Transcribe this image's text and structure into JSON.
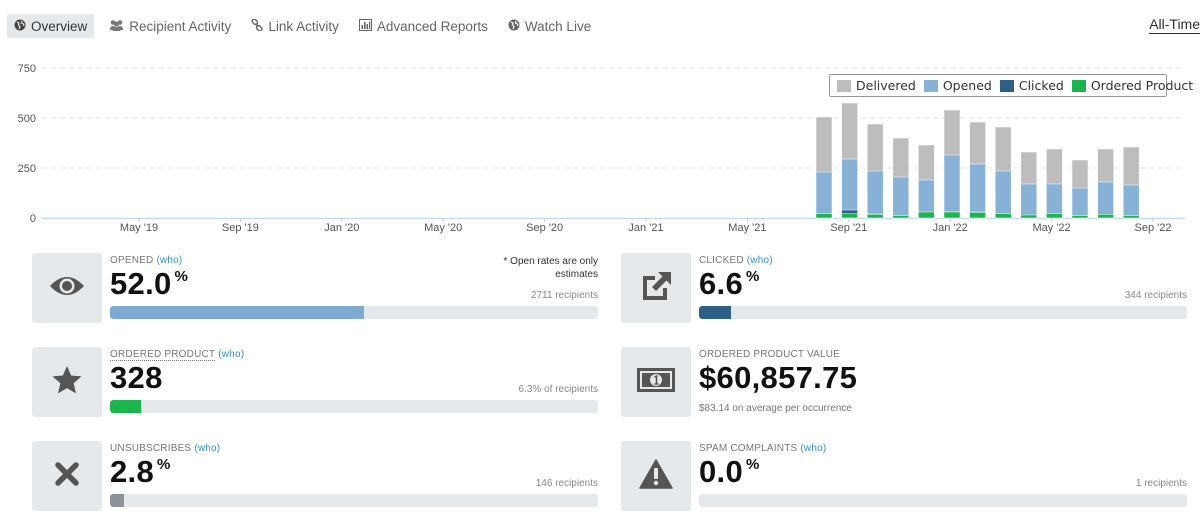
{
  "tabs": [
    {
      "label": "Overview",
      "icon": "globe-icon",
      "active": true
    },
    {
      "label": "Recipient Activity",
      "icon": "users-icon",
      "active": false
    },
    {
      "label": "Link Activity",
      "icon": "link-icon",
      "active": false
    },
    {
      "label": "Advanced Reports",
      "icon": "bar-chart-icon",
      "active": false
    },
    {
      "label": "Watch Live",
      "icon": "globe-icon",
      "active": false
    }
  ],
  "range_selector": "All-Time",
  "chart_data": {
    "type": "bar",
    "stacked": true,
    "ylim": [
      0,
      750
    ],
    "y_ticks": [
      0,
      250,
      500,
      750
    ],
    "x_tick_labels": [
      "May '19",
      "Sep '19",
      "Jan '20",
      "May '20",
      "Sep '20",
      "Jan '21",
      "May '21",
      "Sep '21",
      "Jan '22",
      "May '22",
      "Sep '22"
    ],
    "legend_position": "top-right",
    "grid": true,
    "series": [
      {
        "name": "Delivered",
        "color": "#bdbdbd"
      },
      {
        "name": "Opened",
        "color": "#87b2d6"
      },
      {
        "name": "Clicked",
        "color": "#2e5f86"
      },
      {
        "name": "Ordered Product",
        "color": "#1db34f"
      }
    ],
    "bars": [
      {
        "delivered": 505,
        "opened": 230,
        "clicked": 10,
        "ordered": 22
      },
      {
        "delivered": 575,
        "opened": 295,
        "clicked": 40,
        "ordered": 22
      },
      {
        "delivered": 470,
        "opened": 235,
        "clicked": 20,
        "ordered": 18
      },
      {
        "delivered": 400,
        "opened": 205,
        "clicked": 8,
        "ordered": 12
      },
      {
        "delivered": 365,
        "opened": 190,
        "clicked": 12,
        "ordered": 30
      },
      {
        "delivered": 540,
        "opened": 315,
        "clicked": 30,
        "ordered": 30
      },
      {
        "delivered": 480,
        "opened": 270,
        "clicked": 30,
        "ordered": 28
      },
      {
        "delivered": 455,
        "opened": 235,
        "clicked": 15,
        "ordered": 22
      },
      {
        "delivered": 330,
        "opened": 170,
        "clicked": 10,
        "ordered": 15
      },
      {
        "delivered": 345,
        "opened": 170,
        "clicked": 15,
        "ordered": 22
      },
      {
        "delivered": 290,
        "opened": 150,
        "clicked": 8,
        "ordered": 12
      },
      {
        "delivered": 345,
        "opened": 180,
        "clicked": 8,
        "ordered": 18
      },
      {
        "delivered": 355,
        "opened": 165,
        "clicked": 8,
        "ordered": 12
      }
    ]
  },
  "stats": {
    "opened": {
      "label": "OPENED",
      "who": "(who)",
      "value": "52.0",
      "unit": "%",
      "note": "* Open rates are only estimates",
      "sub": "2711 recipients",
      "fraction": 0.52,
      "color": "#7fabd2",
      "icon": "eye-icon"
    },
    "clicked": {
      "label": "CLICKED",
      "who": "(who)",
      "value": "6.6",
      "unit": "%",
      "sub": "344 recipients",
      "fraction": 0.066,
      "color": "#2e5f86",
      "icon": "external-link-icon"
    },
    "ordered": {
      "label": "ORDERED PRODUCT",
      "who": "(who)",
      "value": "328",
      "sub": "6.3% of recipients",
      "fraction": 0.063,
      "color": "#1db34f",
      "icon": "star-icon"
    },
    "order_value": {
      "label": "ORDERED PRODUCT VALUE",
      "value": "$60,857.75",
      "sub": "$83.14 on average per occurrence",
      "icon": "money-icon"
    },
    "unsubscribes": {
      "label": "UNSUBSCRIBES",
      "who": "(who)",
      "value": "2.8",
      "unit": "%",
      "sub": "146 recipients",
      "fraction": 0.028,
      "color": "#8a9399",
      "icon": "close-icon"
    },
    "spam": {
      "label": "SPAM COMPLAINTS",
      "who": "(who)",
      "value": "0.0",
      "unit": "%",
      "sub": "1 recipients",
      "fraction": 0.0,
      "color": "#8a9399",
      "icon": "warning-icon"
    }
  }
}
